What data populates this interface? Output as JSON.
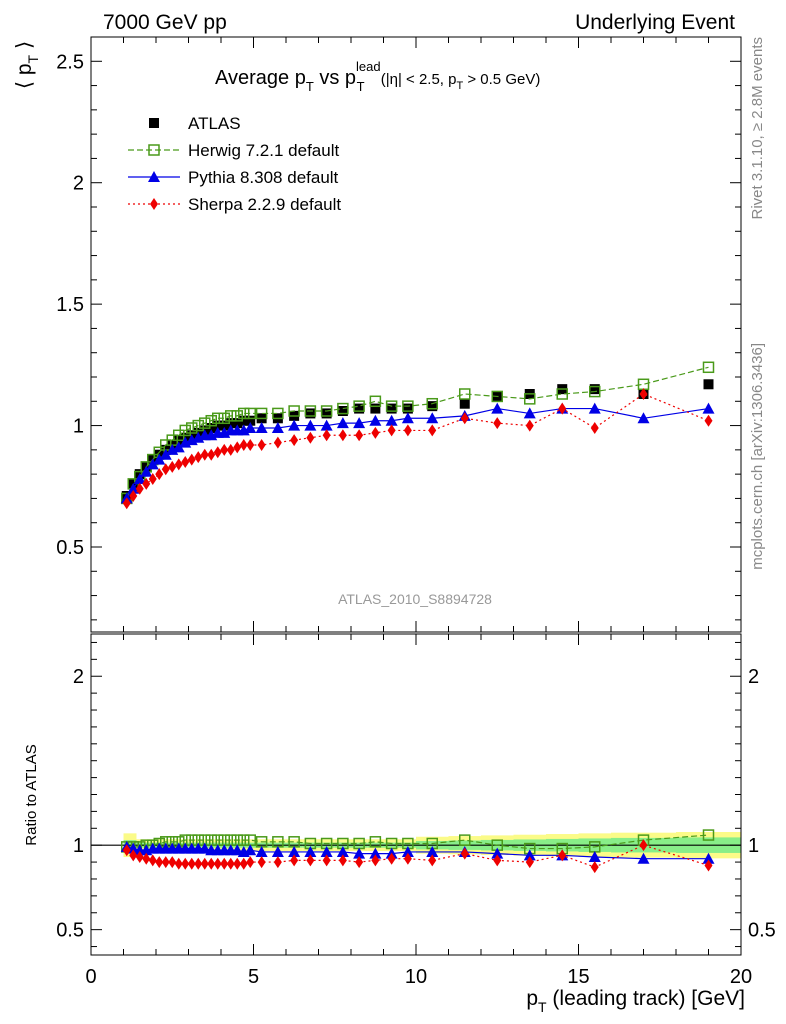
{
  "header": {
    "left": "7000 GeV pp",
    "right": "Underlying Event"
  },
  "side_labels": {
    "rivet": "Rivet 3.1.10, ≥ 2.8M events",
    "mcplots": "mcplots.cern.ch [arXiv:1306.3436]"
  },
  "title": {
    "main": "Average p",
    "main_sub": "T",
    "vs": " vs p",
    "vs_sup": "lead",
    "vs_sub": "T",
    "cut_open": " (|η| < 2.5, p",
    "cut_sub": "T",
    "cut_close": " > 0.5 GeV)"
  },
  "analysis_id": "ATLAS_2010_S8894728",
  "ylabel_main": {
    "pre": "⟨ p",
    "sub": "T",
    "post": " ⟩"
  },
  "ylabel_ratio": "Ratio to ATLAS",
  "xlabel": {
    "pre": "p",
    "sub": "T",
    "post": " (leading track) [GeV]"
  },
  "legend": [
    {
      "label": "ATLAS",
      "color": "#000000",
      "marker": "filled-square",
      "line": "none"
    },
    {
      "label": "Herwig 7.2.1 default",
      "color": "#4a9a1a",
      "marker": "open-square",
      "line": "dashed"
    },
    {
      "label": "Pythia 8.308 default",
      "color": "#0000e6",
      "marker": "triangle",
      "line": "solid"
    },
    {
      "label": "Sherpa 2.2.9 default",
      "color": "#ee0000",
      "marker": "diamond",
      "line": "dotted"
    }
  ],
  "chart_data": [
    {
      "type": "scatter",
      "xlim": [
        0,
        20
      ],
      "ylim": [
        0.15,
        2.6
      ],
      "yticks": [
        0.5,
        1,
        1.5,
        2,
        2.5
      ],
      "ytick_labels": [
        "0.5",
        "1",
        "1.5",
        "2",
        "2.5"
      ],
      "x": [
        1.1,
        1.3,
        1.5,
        1.7,
        1.9,
        2.1,
        2.3,
        2.5,
        2.7,
        2.9,
        3.1,
        3.3,
        3.5,
        3.7,
        3.9,
        4.1,
        4.3,
        4.5,
        4.7,
        4.9,
        5.25,
        5.75,
        6.25,
        6.75,
        7.25,
        7.75,
        8.25,
        8.75,
        9.25,
        9.75,
        10.5,
        11.5,
        12.5,
        13.5,
        14.5,
        15.5,
        17,
        19
      ],
      "series": [
        {
          "name": "ATLAS",
          "values": [
            0.71,
            0.76,
            0.8,
            0.83,
            0.86,
            0.88,
            0.9,
            0.92,
            0.94,
            0.95,
            0.96,
            0.97,
            0.98,
            0.99,
            1.0,
            1.0,
            1.01,
            1.01,
            1.02,
            1.02,
            1.03,
            1.03,
            1.04,
            1.05,
            1.05,
            1.06,
            1.07,
            1.07,
            1.07,
            1.07,
            1.08,
            1.09,
            1.12,
            1.13,
            1.15,
            1.15,
            1.13,
            1.17
          ]
        },
        {
          "name": "Herwig 7.2.1 default",
          "values": [
            0.7,
            0.76,
            0.79,
            0.83,
            0.86,
            0.89,
            0.92,
            0.94,
            0.96,
            0.98,
            0.99,
            1.0,
            1.01,
            1.02,
            1.03,
            1.03,
            1.04,
            1.04,
            1.05,
            1.05,
            1.05,
            1.05,
            1.06,
            1.06,
            1.06,
            1.07,
            1.08,
            1.1,
            1.08,
            1.08,
            1.09,
            1.13,
            1.12,
            1.11,
            1.13,
            1.14,
            1.17,
            1.24
          ]
        },
        {
          "name": "Pythia 8.308 default",
          "values": [
            0.7,
            0.74,
            0.78,
            0.81,
            0.84,
            0.86,
            0.88,
            0.9,
            0.91,
            0.93,
            0.94,
            0.95,
            0.96,
            0.96,
            0.97,
            0.97,
            0.98,
            0.98,
            0.98,
            0.99,
            0.99,
            0.99,
            1.0,
            1.0,
            1.0,
            1.01,
            1.01,
            1.02,
            1.02,
            1.03,
            1.03,
            1.04,
            1.07,
            1.05,
            1.07,
            1.07,
            1.03,
            1.07
          ]
        },
        {
          "name": "Sherpa 2.2.9 default",
          "values": [
            0.68,
            0.71,
            0.74,
            0.76,
            0.78,
            0.8,
            0.82,
            0.83,
            0.84,
            0.85,
            0.86,
            0.87,
            0.88,
            0.88,
            0.89,
            0.9,
            0.9,
            0.91,
            0.92,
            0.92,
            0.92,
            0.93,
            0.94,
            0.95,
            0.96,
            0.96,
            0.96,
            0.97,
            0.98,
            0.98,
            0.98,
            1.03,
            1.01,
            1.0,
            1.07,
            0.99,
            1.13,
            1.02
          ]
        }
      ]
    },
    {
      "type": "scatter",
      "xlim": [
        0,
        20
      ],
      "ylim": [
        0.35,
        2.25
      ],
      "yticks": [
        0.5,
        1,
        2
      ],
      "ytick_labels": [
        "0.5",
        "1",
        "2"
      ],
      "x": [
        1.1,
        1.3,
        1.5,
        1.7,
        1.9,
        2.1,
        2.3,
        2.5,
        2.7,
        2.9,
        3.1,
        3.3,
        3.5,
        3.7,
        3.9,
        4.1,
        4.3,
        4.5,
        4.7,
        4.9,
        5.25,
        5.75,
        6.25,
        6.75,
        7.25,
        7.75,
        8.25,
        8.75,
        9.25,
        9.75,
        10.5,
        11.5,
        12.5,
        13.5,
        14.5,
        15.5,
        17,
        19
      ],
      "xticks": [
        0,
        5,
        10,
        15,
        20
      ],
      "xtick_labels": [
        "0",
        "5",
        "10",
        "15",
        "20"
      ],
      "series": [
        {
          "name": "Herwig 7.2.1 default",
          "values": [
            0.99,
            0.99,
            0.99,
            1.0,
            1.0,
            1.01,
            1.02,
            1.02,
            1.02,
            1.03,
            1.03,
            1.03,
            1.03,
            1.03,
            1.03,
            1.03,
            1.03,
            1.03,
            1.03,
            1.03,
            1.02,
            1.02,
            1.02,
            1.01,
            1.01,
            1.01,
            1.01,
            1.02,
            1.01,
            1.01,
            1.01,
            1.03,
            1.0,
            0.98,
            0.98,
            0.99,
            1.03,
            1.06
          ]
        },
        {
          "name": "Pythia 8.308 default",
          "values": [
            0.99,
            0.98,
            0.97,
            0.97,
            0.98,
            0.98,
            0.98,
            0.98,
            0.98,
            0.98,
            0.98,
            0.98,
            0.98,
            0.97,
            0.97,
            0.97,
            0.97,
            0.97,
            0.96,
            0.97,
            0.96,
            0.96,
            0.96,
            0.96,
            0.96,
            0.96,
            0.95,
            0.95,
            0.95,
            0.96,
            0.96,
            0.96,
            0.95,
            0.94,
            0.94,
            0.93,
            0.92,
            0.92
          ]
        },
        {
          "name": "Sherpa 2.2.9 default",
          "values": [
            0.97,
            0.94,
            0.93,
            0.92,
            0.91,
            0.9,
            0.9,
            0.9,
            0.89,
            0.89,
            0.89,
            0.89,
            0.89,
            0.89,
            0.89,
            0.89,
            0.89,
            0.89,
            0.89,
            0.9,
            0.9,
            0.9,
            0.91,
            0.91,
            0.91,
            0.91,
            0.9,
            0.91,
            0.92,
            0.92,
            0.91,
            0.95,
            0.91,
            0.9,
            0.94,
            0.87,
            1.0,
            0.88
          ]
        }
      ]
    }
  ]
}
